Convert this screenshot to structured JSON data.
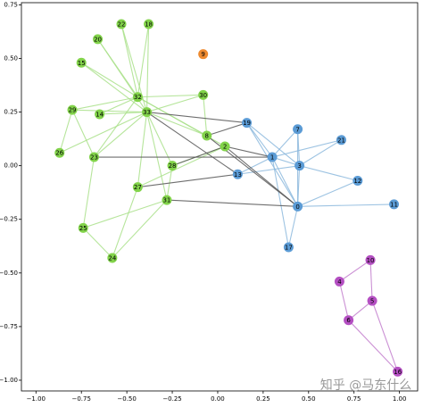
{
  "chart_data": {
    "type": "network",
    "xlim": [
      -1.08,
      1.1
    ],
    "ylim": [
      -1.05,
      0.76
    ],
    "xticks": [
      {
        "value": -1,
        "label": "−1.00"
      },
      {
        "value": -0.75,
        "label": "−0.75"
      },
      {
        "value": -0.5,
        "label": "−0.50"
      },
      {
        "value": -0.25,
        "label": "−0.25"
      },
      {
        "value": 0,
        "label": "0.00"
      },
      {
        "value": 0.25,
        "label": "0.25"
      },
      {
        "value": 0.5,
        "label": "0.50"
      },
      {
        "value": 0.75,
        "label": "0.75"
      },
      {
        "value": 1,
        "label": "1.00"
      }
    ],
    "yticks": [
      {
        "value": -1,
        "label": "−1.00"
      },
      {
        "value": -0.75,
        "label": "−0.75"
      },
      {
        "value": -0.5,
        "label": "−0.50"
      },
      {
        "value": -0.25,
        "label": "−0.25"
      },
      {
        "value": 0,
        "label": "0.00"
      },
      {
        "value": 0.25,
        "label": "0.25"
      },
      {
        "value": 0.5,
        "label": "0.50"
      },
      {
        "value": 0.75,
        "label": "0.75"
      }
    ],
    "groups": [
      {
        "color": "#82d34a"
      },
      {
        "color": "#ee8a2f"
      },
      {
        "color": "#5b9bd5"
      },
      {
        "color": "#b44fc2"
      }
    ],
    "nodes": [
      {
        "name": "0",
        "x": 0.44,
        "y": -0.19,
        "group": 2
      },
      {
        "name": "1",
        "x": 0.3,
        "y": 0.04,
        "group": 2
      },
      {
        "name": "2",
        "x": 0.04,
        "y": 0.09,
        "group": 0
      },
      {
        "name": "3",
        "x": 0.45,
        "y": 0.0,
        "group": 2
      },
      {
        "name": "4",
        "x": 0.67,
        "y": -0.54,
        "group": 3
      },
      {
        "name": "5",
        "x": 0.85,
        "y": -0.63,
        "group": 3
      },
      {
        "name": "6",
        "x": 0.72,
        "y": -0.72,
        "group": 3
      },
      {
        "name": "7",
        "x": 0.44,
        "y": 0.17,
        "group": 2
      },
      {
        "name": "8",
        "x": -0.06,
        "y": 0.14,
        "group": 0
      },
      {
        "name": "9",
        "x": -0.08,
        "y": 0.52,
        "group": 1
      },
      {
        "name": "10",
        "x": 0.84,
        "y": -0.44,
        "group": 3
      },
      {
        "name": "11",
        "x": 0.97,
        "y": -0.18,
        "group": 2
      },
      {
        "name": "12",
        "x": 0.77,
        "y": -0.07,
        "group": 2
      },
      {
        "name": "13",
        "x": 0.11,
        "y": -0.04,
        "group": 2
      },
      {
        "name": "14",
        "x": -0.65,
        "y": 0.24,
        "group": 0
      },
      {
        "name": "15",
        "x": -0.75,
        "y": 0.48,
        "group": 0
      },
      {
        "name": "16",
        "x": 0.99,
        "y": -0.96,
        "group": 3
      },
      {
        "name": "17",
        "x": 0.39,
        "y": -0.38,
        "group": 2
      },
      {
        "name": "18",
        "x": -0.38,
        "y": 0.66,
        "group": 0
      },
      {
        "name": "19",
        "x": 0.16,
        "y": 0.2,
        "group": 2
      },
      {
        "name": "20",
        "x": -0.66,
        "y": 0.59,
        "group": 0
      },
      {
        "name": "21",
        "x": 0.68,
        "y": 0.12,
        "group": 2
      },
      {
        "name": "22",
        "x": -0.53,
        "y": 0.66,
        "group": 0
      },
      {
        "name": "23",
        "x": -0.68,
        "y": 0.04,
        "group": 0
      },
      {
        "name": "24",
        "x": -0.58,
        "y": -0.43,
        "group": 0
      },
      {
        "name": "25",
        "x": -0.74,
        "y": -0.29,
        "group": 0
      },
      {
        "name": "26",
        "x": -0.87,
        "y": 0.06,
        "group": 0
      },
      {
        "name": "27",
        "x": -0.44,
        "y": -0.1,
        "group": 0
      },
      {
        "name": "28",
        "x": -0.25,
        "y": 0.0,
        "group": 0
      },
      {
        "name": "29",
        "x": -0.8,
        "y": 0.26,
        "group": 0
      },
      {
        "name": "30",
        "x": -0.08,
        "y": 0.33,
        "group": 0
      },
      {
        "name": "31",
        "x": -0.28,
        "y": -0.16,
        "group": 0
      },
      {
        "name": "32",
        "x": -0.44,
        "y": 0.32,
        "group": 0
      },
      {
        "name": "33",
        "x": -0.39,
        "y": 0.25,
        "group": 0
      }
    ],
    "edge_sets": [
      {
        "color": "#a9e08a",
        "edges": [
          [
            22,
            33
          ],
          [
            18,
            33
          ],
          [
            20,
            33
          ],
          [
            15,
            33
          ],
          [
            15,
            32
          ],
          [
            22,
            32
          ],
          [
            18,
            32
          ],
          [
            20,
            32
          ],
          [
            29,
            32
          ],
          [
            29,
            33
          ],
          [
            14,
            33
          ],
          [
            14,
            32
          ],
          [
            30,
            32
          ],
          [
            30,
            33
          ],
          [
            8,
            33
          ],
          [
            8,
            32
          ],
          [
            2,
            32
          ],
          [
            26,
            29
          ],
          [
            26,
            33
          ],
          [
            23,
            33
          ],
          [
            23,
            32
          ],
          [
            25,
            23
          ],
          [
            25,
            31
          ],
          [
            24,
            25
          ],
          [
            24,
            27
          ],
          [
            27,
            33
          ],
          [
            28,
            33
          ],
          [
            28,
            31
          ],
          [
            31,
            33
          ],
          [
            2,
            28
          ],
          [
            8,
            30
          ],
          [
            2,
            27
          ],
          [
            24,
            31
          ],
          [
            29,
            23
          ]
        ]
      },
      {
        "color": "#8cb8dd",
        "edges": [
          [
            19,
            1
          ],
          [
            19,
            3
          ],
          [
            1,
            7
          ],
          [
            1,
            3
          ],
          [
            1,
            0
          ],
          [
            3,
            7
          ],
          [
            3,
            0
          ],
          [
            3,
            12
          ],
          [
            3,
            21
          ],
          [
            1,
            21
          ],
          [
            7,
            0
          ],
          [
            13,
            3
          ],
          [
            13,
            1
          ],
          [
            0,
            12
          ],
          [
            0,
            11
          ],
          [
            0,
            17
          ],
          [
            1,
            17
          ],
          [
            19,
            0
          ]
        ]
      },
      {
        "color": "#c27ccc",
        "edges": [
          [
            10,
            4
          ],
          [
            10,
            5
          ],
          [
            4,
            6
          ],
          [
            5,
            6
          ],
          [
            6,
            16
          ],
          [
            5,
            16
          ]
        ]
      },
      {
        "color": "#555555",
        "edges": [
          [
            2,
            0
          ],
          [
            2,
            1
          ],
          [
            8,
            0
          ],
          [
            13,
            33
          ],
          [
            19,
            33
          ],
          [
            31,
            0
          ],
          [
            28,
            2
          ],
          [
            27,
            13
          ],
          [
            23,
            1
          ],
          [
            8,
            19
          ]
        ]
      }
    ],
    "watermark": "知乎 @马东什么"
  }
}
